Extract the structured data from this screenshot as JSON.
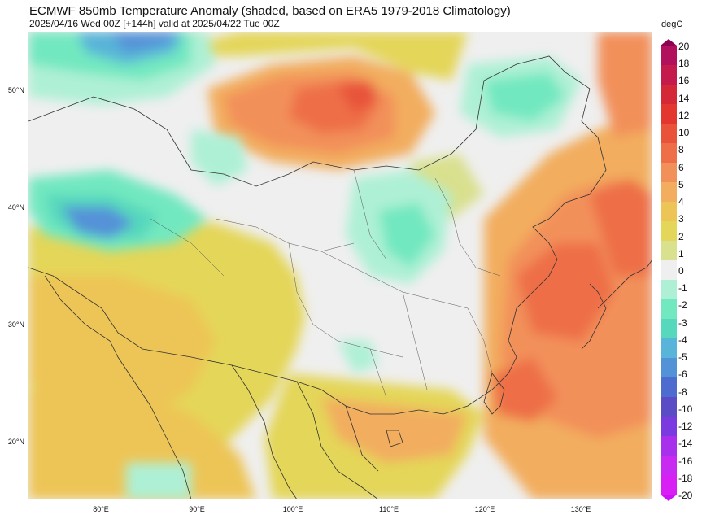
{
  "header": {
    "title": "ECMWF 850mb Temperature Anomaly (shaded, based on ERA5 1979-2018 Climatology)",
    "subtitle": "2025/04/16 Wed 00Z [+144h] valid at 2025/04/22 Tue 00Z"
  },
  "map": {
    "lat_labels": [
      "50°N",
      "40°N",
      "30°N",
      "20°N"
    ],
    "lon_labels": [
      "80°E",
      "90°E",
      "100°E",
      "110°E",
      "120°E",
      "130°E"
    ],
    "extent": {
      "lon_min": 72.5,
      "lon_max": 137.5,
      "lat_min": 15,
      "lat_max": 55
    }
  },
  "colorbar": {
    "unit": "degC",
    "levels": [
      "20",
      "18",
      "16",
      "14",
      "12",
      "10",
      "8",
      "6",
      "5",
      "4",
      "3",
      "2",
      "1",
      "0",
      "-1",
      "-2",
      "-3",
      "-4",
      "-5",
      "-6",
      "-8",
      "-10",
      "-12",
      "-14",
      "-16",
      "-18",
      "-20"
    ],
    "colors": [
      "#b0105c",
      "#c41a4c",
      "#d42838",
      "#e2362e",
      "#e8533a",
      "#ee6e47",
      "#f2905a",
      "#f2ad5e",
      "#edc557",
      "#e4d659",
      "#d9e08e",
      "#efefef",
      "#aef0d6",
      "#72e8c0",
      "#56d8bc",
      "#58b4d8",
      "#5492d8",
      "#4e6cd0",
      "#5b4cc6",
      "#7a3ae0",
      "#a830ec",
      "#c82af2",
      "#d820f4"
    ],
    "top_color": "#8e0052",
    "bottom_color": "#d010f8"
  }
}
